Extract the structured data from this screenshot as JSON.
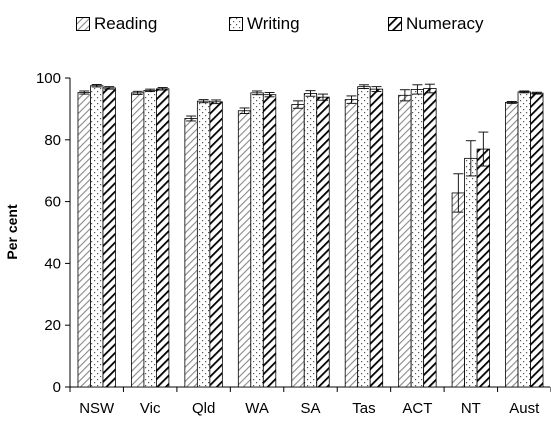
{
  "chart_data": {
    "type": "bar",
    "title": "",
    "xlabel": "",
    "ylabel": "Per cent",
    "ylim": [
      0,
      100
    ],
    "yticks": [
      0,
      20,
      40,
      60,
      80,
      100
    ],
    "grid": false,
    "legend_position": "top",
    "error_bars": true,
    "categories": [
      "NSW",
      "Vic",
      "Qld",
      "WA",
      "SA",
      "Tas",
      "ACT",
      "NT",
      "Aust"
    ],
    "series": [
      {
        "name": "Reading",
        "pattern": "diagonal-light",
        "values": [
          95.3,
          95.2,
          86.9,
          89.4,
          91.4,
          93.0,
          94.4,
          62.8,
          92.1
        ],
        "errors": [
          0.5,
          0.5,
          0.8,
          0.9,
          1.2,
          1.2,
          1.8,
          6.2,
          0.3
        ]
      },
      {
        "name": "Writing",
        "pattern": "dotted",
        "values": [
          97.5,
          96.0,
          92.5,
          95.2,
          95.0,
          97.2,
          96.3,
          74.0,
          95.5
        ],
        "errors": [
          0.4,
          0.4,
          0.5,
          0.6,
          0.9,
          0.6,
          1.5,
          5.7,
          0.3
        ]
      },
      {
        "name": "Numeracy",
        "pattern": "diagonal-heavy",
        "values": [
          96.8,
          96.5,
          92.3,
          94.6,
          93.8,
          96.4,
          96.6,
          77.0,
          95.1
        ],
        "errors": [
          0.4,
          0.4,
          0.6,
          0.7,
          1.0,
          0.8,
          1.4,
          5.5,
          0.3
        ]
      }
    ],
    "colors": {
      "axis": "#000000",
      "bar_stroke": "#000000",
      "bar_fill": "#ffffff"
    }
  }
}
